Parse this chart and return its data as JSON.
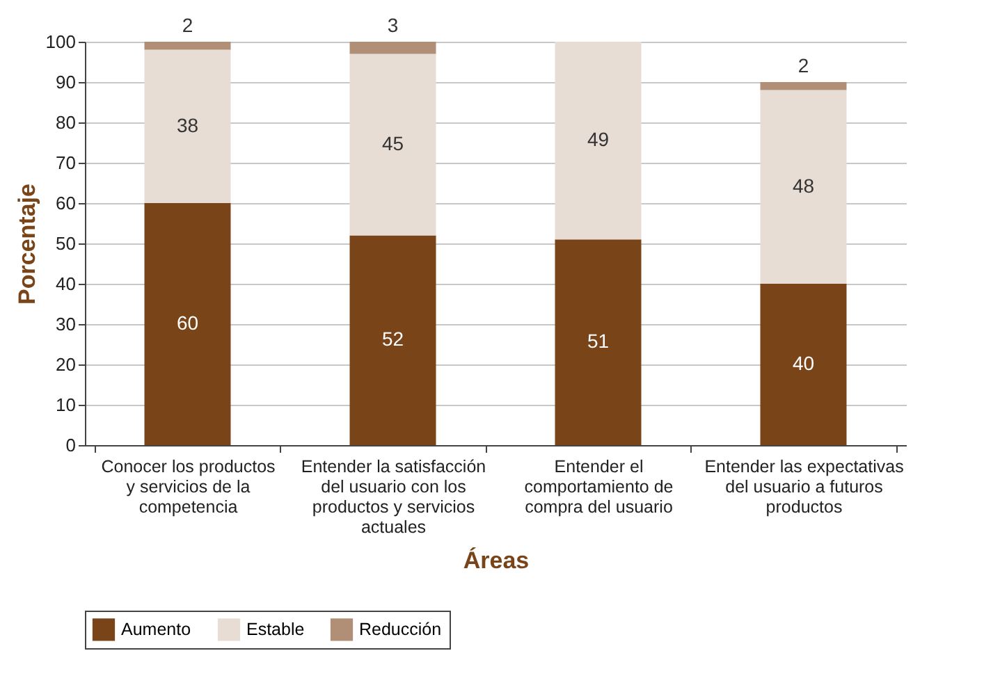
{
  "chart_data": {
    "type": "bar",
    "stacked": true,
    "xlabel": "Áreas",
    "ylabel": "Porcentaje",
    "categories": [
      "Conocer los productos\ny servicios de la\ncompetencia",
      "Entender la satisfacción\ndel usuario con los\nproductos y servicios\nactuales",
      "Entender el\ncomportamiento de\ncompra del usuario",
      "Entender las expectativas\ndel usuario a futuros\nproductos"
    ],
    "series": [
      {
        "name": "Aumento",
        "color": "#7a4419",
        "values": [
          60,
          52,
          51,
          40
        ],
        "value_labels": [
          "60",
          "52",
          "51",
          "40"
        ]
      },
      {
        "name": "Estable",
        "color": "#e8ddd5",
        "values": [
          38,
          45,
          49,
          48
        ],
        "value_labels": [
          "38",
          "45",
          "49",
          "48"
        ]
      },
      {
        "name": "Reducción",
        "color": "#b08f76",
        "values": [
          2,
          3,
          0,
          2
        ],
        "value_labels": [
          "2",
          "3",
          null,
          "2"
        ]
      }
    ],
    "ylim": [
      0,
      100
    ],
    "yticks": [
      0,
      10,
      20,
      30,
      40,
      50,
      60,
      70,
      80,
      90,
      100
    ],
    "grid": "y",
    "legend": "bottom"
  }
}
